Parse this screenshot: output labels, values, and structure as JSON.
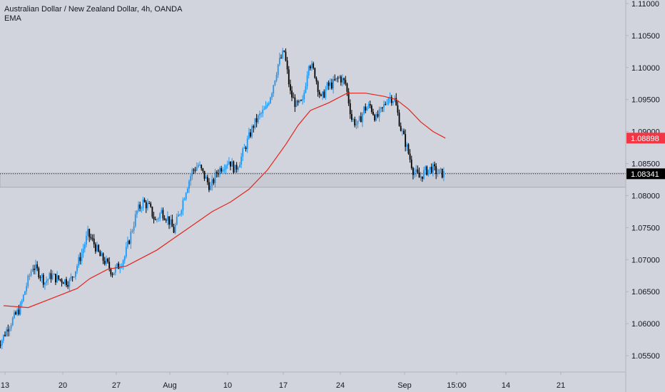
{
  "header": {
    "symbol_line": "Australian Dollar / New Zealand Dollar, 4h, OANDA",
    "indicator": "EMA"
  },
  "colors": {
    "background": "#d1d4dc",
    "up_candle": "#2196f3",
    "down_candle": "#000000",
    "ema_line": "#e5241b",
    "ema_badge": "#f23645",
    "price_badge": "#000000",
    "zone": "#c8cbd3"
  },
  "price_axis": {
    "labels": [
      "1.11000",
      "1.10500",
      "1.10000",
      "1.09500",
      "1.09000",
      "1.08500",
      "1.08000",
      "1.07500",
      "1.07000",
      "1.06500",
      "1.06000",
      "1.05500"
    ],
    "ema_badge": "1.08898",
    "price_badge": "1.08341"
  },
  "time_axis": {
    "labels": [
      "13",
      "20",
      "27",
      "Aug",
      "10",
      "17",
      "24",
      "Sep",
      "15:00",
      "14",
      "21"
    ]
  },
  "chart_data": {
    "type": "candlestick",
    "title": "Australian Dollar / New Zealand Dollar, 4h, OANDA",
    "ylim": [
      1.053,
      1.1115
    ],
    "x_ticks": [
      "13",
      "20",
      "27",
      "Aug",
      "10",
      "17",
      "24",
      "Sep",
      "15:00",
      "14",
      "21"
    ],
    "current_price": 1.08341,
    "ema_last": 1.08898,
    "zone": [
      1.0813,
      1.0835
    ],
    "close_path": [
      [
        0,
        1.0575
      ],
      [
        1,
        1.0595
      ],
      [
        2,
        1.061
      ],
      [
        3,
        1.0625
      ],
      [
        4,
        1.066
      ],
      [
        5,
        1.069
      ],
      [
        6,
        1.068
      ],
      [
        7,
        1.0665
      ],
      [
        8,
        1.0675
      ],
      [
        9,
        1.067
      ],
      [
        10,
        1.0668
      ],
      [
        11,
        1.0665
      ],
      [
        12,
        1.0685
      ],
      [
        13,
        1.071
      ],
      [
        14,
        1.074
      ],
      [
        15,
        1.0725
      ],
      [
        16,
        1.0705
      ],
      [
        17,
        1.0695
      ],
      [
        18,
        1.068
      ],
      [
        19,
        1.069
      ],
      [
        20,
        1.0705
      ],
      [
        21,
        1.074
      ],
      [
        22,
        1.0775
      ],
      [
        23,
        1.079
      ],
      [
        24,
        1.0782
      ],
      [
        25,
        1.076
      ],
      [
        26,
        1.0775
      ],
      [
        27,
        1.0765
      ],
      [
        28,
        1.0745
      ],
      [
        29,
        1.0775
      ],
      [
        30,
        1.081
      ],
      [
        31,
        1.0838
      ],
      [
        32,
        1.0848
      ],
      [
        33,
        1.083
      ],
      [
        34,
        1.0812
      ],
      [
        35,
        1.0836
      ],
      [
        36,
        1.0847
      ],
      [
        37,
        1.0855
      ],
      [
        38,
        1.084
      ],
      [
        39,
        1.086
      ],
      [
        40,
        1.0885
      ],
      [
        41,
        1.091
      ],
      [
        42,
        1.0925
      ],
      [
        43,
        1.0935
      ],
      [
        44,
        1.0965
      ],
      [
        45,
        1.1005
      ],
      [
        46,
        1.1025
      ],
      [
        47,
        1.096
      ],
      [
        48,
        1.094
      ],
      [
        49,
        1.0945
      ],
      [
        50,
        1.101
      ],
      [
        51,
        1.099
      ],
      [
        52,
        1.095
      ],
      [
        53,
        1.097
      ],
      [
        54,
        1.0975
      ],
      [
        55,
        1.0985
      ],
      [
        56,
        1.0975
      ],
      [
        57,
        1.092
      ],
      [
        58,
        1.091
      ],
      [
        59,
        1.0935
      ],
      [
        60,
        1.094
      ],
      [
        61,
        1.092
      ],
      [
        62,
        1.0935
      ],
      [
        63,
        1.0955
      ],
      [
        64,
        1.095
      ],
      [
        65,
        1.0905
      ],
      [
        66,
        1.0875
      ],
      [
        67,
        1.084
      ],
      [
        68,
        1.0828
      ],
      [
        69,
        1.0838
      ],
      [
        70,
        1.0843
      ],
      [
        71,
        1.0836
      ],
      [
        72,
        1.0834
      ]
    ],
    "ema_path": [
      [
        0,
        1.0628
      ],
      [
        4,
        1.0625
      ],
      [
        8,
        1.064
      ],
      [
        12,
        1.0655
      ],
      [
        14,
        1.067
      ],
      [
        17,
        1.0685
      ],
      [
        20,
        1.069
      ],
      [
        22,
        1.07
      ],
      [
        25,
        1.0715
      ],
      [
        28,
        1.0735
      ],
      [
        31,
        1.0755
      ],
      [
        34,
        1.0775
      ],
      [
        37,
        1.079
      ],
      [
        40,
        1.081
      ],
      [
        43,
        1.084
      ],
      [
        46,
        1.088
      ],
      [
        48,
        1.091
      ],
      [
        50,
        1.0933
      ],
      [
        53,
        1.0945
      ],
      [
        56,
        1.096
      ],
      [
        59,
        1.096
      ],
      [
        62,
        1.0955
      ],
      [
        64,
        1.095
      ],
      [
        66,
        1.0935
      ],
      [
        68,
        1.0915
      ],
      [
        70,
        1.09
      ],
      [
        72,
        1.08898
      ]
    ]
  }
}
